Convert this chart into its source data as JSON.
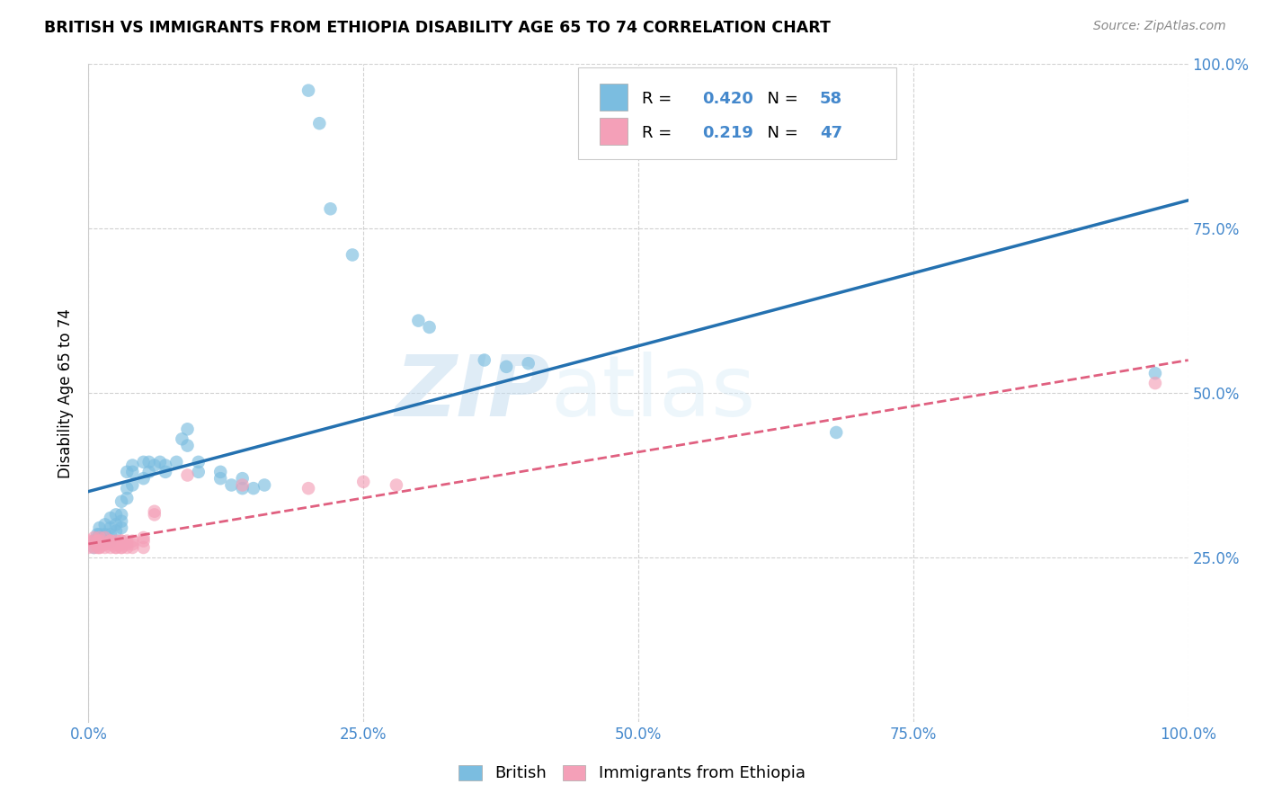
{
  "title": "BRITISH VS IMMIGRANTS FROM ETHIOPIA DISABILITY AGE 65 TO 74 CORRELATION CHART",
  "source": "Source: ZipAtlas.com",
  "ylabel": "Disability Age 65 to 74",
  "xlim": [
    0.0,
    1.0
  ],
  "ylim": [
    0.0,
    1.0
  ],
  "xticks": [
    0.0,
    0.25,
    0.5,
    0.75,
    1.0
  ],
  "yticks": [
    0.25,
    0.5,
    0.75,
    1.0
  ],
  "tick_labels": [
    "25.0%",
    "50.0%",
    "75.0%",
    "100.0%"
  ],
  "xtick_labels_full": [
    "0.0%",
    "25.0%",
    "50.0%",
    "75.0%",
    "100.0%"
  ],
  "british_color": "#7bbde0",
  "ethiopia_color": "#f4a0b8",
  "british_line_color": "#2471b0",
  "ethiopia_line_color": "#e06080",
  "british_R": 0.42,
  "british_N": 58,
  "ethiopia_R": 0.219,
  "ethiopia_N": 47,
  "watermark_zip": "ZIP",
  "watermark_atlas": "atlas",
  "british_scatter": [
    [
      0.005,
      0.275
    ],
    [
      0.005,
      0.265
    ],
    [
      0.008,
      0.285
    ],
    [
      0.01,
      0.27
    ],
    [
      0.01,
      0.285
    ],
    [
      0.01,
      0.295
    ],
    [
      0.015,
      0.3
    ],
    [
      0.015,
      0.285
    ],
    [
      0.015,
      0.275
    ],
    [
      0.02,
      0.295
    ],
    [
      0.02,
      0.31
    ],
    [
      0.02,
      0.285
    ],
    [
      0.02,
      0.275
    ],
    [
      0.025,
      0.3
    ],
    [
      0.025,
      0.315
    ],
    [
      0.025,
      0.29
    ],
    [
      0.03,
      0.335
    ],
    [
      0.03,
      0.315
    ],
    [
      0.03,
      0.305
    ],
    [
      0.03,
      0.295
    ],
    [
      0.035,
      0.38
    ],
    [
      0.035,
      0.355
    ],
    [
      0.035,
      0.34
    ],
    [
      0.04,
      0.36
    ],
    [
      0.04,
      0.38
    ],
    [
      0.04,
      0.39
    ],
    [
      0.05,
      0.395
    ],
    [
      0.05,
      0.37
    ],
    [
      0.055,
      0.395
    ],
    [
      0.055,
      0.38
    ],
    [
      0.06,
      0.39
    ],
    [
      0.065,
      0.395
    ],
    [
      0.07,
      0.38
    ],
    [
      0.07,
      0.39
    ],
    [
      0.08,
      0.395
    ],
    [
      0.085,
      0.43
    ],
    [
      0.09,
      0.445
    ],
    [
      0.09,
      0.42
    ],
    [
      0.1,
      0.395
    ],
    [
      0.1,
      0.38
    ],
    [
      0.12,
      0.37
    ],
    [
      0.12,
      0.38
    ],
    [
      0.13,
      0.36
    ],
    [
      0.14,
      0.355
    ],
    [
      0.14,
      0.37
    ],
    [
      0.15,
      0.355
    ],
    [
      0.16,
      0.36
    ],
    [
      0.2,
      0.96
    ],
    [
      0.21,
      0.91
    ],
    [
      0.22,
      0.78
    ],
    [
      0.24,
      0.71
    ],
    [
      0.3,
      0.61
    ],
    [
      0.31,
      0.6
    ],
    [
      0.36,
      0.55
    ],
    [
      0.38,
      0.54
    ],
    [
      0.4,
      0.545
    ],
    [
      0.68,
      0.44
    ],
    [
      0.97,
      0.53
    ]
  ],
  "ethiopia_scatter": [
    [
      0.0,
      0.275
    ],
    [
      0.0,
      0.265
    ],
    [
      0.005,
      0.28
    ],
    [
      0.005,
      0.275
    ],
    [
      0.005,
      0.265
    ],
    [
      0.008,
      0.27
    ],
    [
      0.008,
      0.265
    ],
    [
      0.008,
      0.275
    ],
    [
      0.01,
      0.27
    ],
    [
      0.01,
      0.265
    ],
    [
      0.01,
      0.275
    ],
    [
      0.01,
      0.28
    ],
    [
      0.01,
      0.265
    ],
    [
      0.015,
      0.27
    ],
    [
      0.015,
      0.265
    ],
    [
      0.015,
      0.28
    ],
    [
      0.015,
      0.27
    ],
    [
      0.02,
      0.275
    ],
    [
      0.02,
      0.265
    ],
    [
      0.02,
      0.27
    ],
    [
      0.02,
      0.275
    ],
    [
      0.025,
      0.27
    ],
    [
      0.025,
      0.265
    ],
    [
      0.025,
      0.275
    ],
    [
      0.025,
      0.265
    ],
    [
      0.03,
      0.275
    ],
    [
      0.03,
      0.265
    ],
    [
      0.03,
      0.27
    ],
    [
      0.03,
      0.275
    ],
    [
      0.03,
      0.265
    ],
    [
      0.035,
      0.275
    ],
    [
      0.035,
      0.27
    ],
    [
      0.035,
      0.265
    ],
    [
      0.04,
      0.275
    ],
    [
      0.04,
      0.27
    ],
    [
      0.04,
      0.265
    ],
    [
      0.05,
      0.28
    ],
    [
      0.05,
      0.275
    ],
    [
      0.05,
      0.265
    ],
    [
      0.06,
      0.32
    ],
    [
      0.06,
      0.315
    ],
    [
      0.09,
      0.375
    ],
    [
      0.14,
      0.36
    ],
    [
      0.2,
      0.355
    ],
    [
      0.25,
      0.365
    ],
    [
      0.28,
      0.36
    ],
    [
      0.97,
      0.515
    ]
  ]
}
